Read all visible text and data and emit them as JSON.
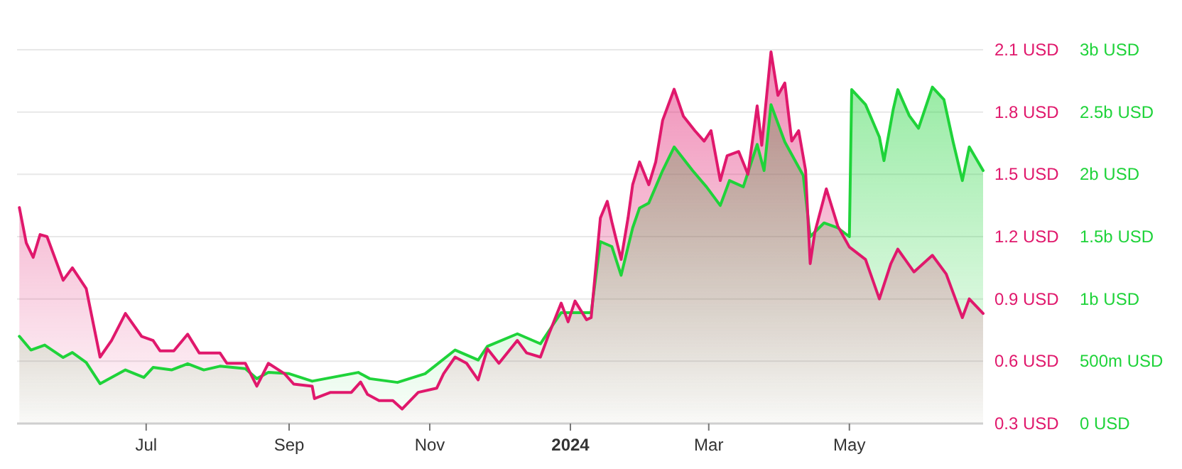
{
  "chart_data": {
    "type": "area",
    "grid": "y",
    "xlim": [
      "2023-05-06",
      "2024-06-28"
    ],
    "xticks": [
      {
        "value": "2023-07-01",
        "label": "Jul"
      },
      {
        "value": "2023-09-01",
        "label": "Sep"
      },
      {
        "value": "2023-11-01",
        "label": "Nov"
      },
      {
        "value": "2024-01-01",
        "label": "2024"
      },
      {
        "value": "2024-03-01",
        "label": "Mar"
      },
      {
        "value": "2024-05-01",
        "label": "May"
      }
    ],
    "ylim": [
      0.3,
      2.1
    ],
    "yticks": [
      {
        "value": 0.3,
        "label": "0.3 USD"
      },
      {
        "value": 0.6,
        "label": "0.6 USD"
      },
      {
        "value": 0.9,
        "label": "0.9 USD"
      },
      {
        "value": 1.2,
        "label": "1.2 USD"
      },
      {
        "value": 1.5,
        "label": "1.5 USD"
      },
      {
        "value": 1.8,
        "label": "1.8 USD"
      },
      {
        "value": 2.1,
        "label": "2.1 USD"
      }
    ],
    "y2lim": [
      0,
      3000000000
    ],
    "y2ticks": [
      {
        "value": 0,
        "label": "0 USD"
      },
      {
        "value": 500000000,
        "label": "500m USD"
      },
      {
        "value": 1000000000,
        "label": "1b USD"
      },
      {
        "value": 1500000000,
        "label": "1.5b USD"
      },
      {
        "value": 2000000000,
        "label": "2b USD"
      },
      {
        "value": 2500000000,
        "label": "2.5b USD"
      },
      {
        "value": 3000000000,
        "label": "3b USD"
      }
    ],
    "series": [
      {
        "color": "#1fd33a",
        "axis": "y2",
        "x": [
          "2023-05-07",
          "2023-05-12",
          "2023-05-18",
          "2023-05-26",
          "2023-05-30",
          "2023-06-05",
          "2023-06-11",
          "2023-06-22",
          "2023-06-30",
          "2023-07-04",
          "2023-07-12",
          "2023-07-19",
          "2023-07-26",
          "2023-08-02",
          "2023-08-13",
          "2023-08-18",
          "2023-08-23",
          "2023-09-01",
          "2023-09-11",
          "2023-10-01",
          "2023-10-06",
          "2023-10-18",
          "2023-10-30",
          "2023-11-12",
          "2023-11-22",
          "2023-11-26",
          "2023-12-09",
          "2023-12-19",
          "2023-12-24",
          "2023-12-28",
          "2024-01-10",
          "2024-01-14",
          "2024-01-19",
          "2024-01-23",
          "2024-01-28",
          "2024-01-31",
          "2024-02-04",
          "2024-02-10",
          "2024-02-15",
          "2024-02-23",
          "2024-02-29",
          "2024-03-06",
          "2024-03-10",
          "2024-03-16",
          "2024-03-22",
          "2024-03-25",
          "2024-03-28",
          "2024-04-03",
          "2024-04-11",
          "2024-04-14",
          "2024-04-20",
          "2024-04-26",
          "2024-05-01",
          "2024-05-02",
          "2024-05-08",
          "2024-05-14",
          "2024-05-16",
          "2024-05-20",
          "2024-05-22",
          "2024-05-27",
          "2024-05-31",
          "2024-06-06",
          "2024-06-11",
          "2024-06-15",
          "2024-06-19",
          "2024-06-22",
          "2024-06-28"
        ],
        "values": [
          700000000,
          590000000,
          630000000,
          530000000,
          570000000,
          490000000,
          320000000,
          430000000,
          370000000,
          450000000,
          430000000,
          480000000,
          430000000,
          460000000,
          440000000,
          360000000,
          410000000,
          400000000,
          340000000,
          410000000,
          360000000,
          330000000,
          400000000,
          590000000,
          510000000,
          620000000,
          720000000,
          640000000,
          780000000,
          890000000,
          890000000,
          1460000000,
          1420000000,
          1190000000,
          1570000000,
          1730000000,
          1770000000,
          2030000000,
          2220000000,
          2030000000,
          1900000000,
          1750000000,
          1950000000,
          1900000000,
          2240000000,
          2030000000,
          2560000000,
          2260000000,
          1990000000,
          1500000000,
          1610000000,
          1570000000,
          1500000000,
          2680000000,
          2560000000,
          2300000000,
          2110000000,
          2520000000,
          2680000000,
          2470000000,
          2370000000,
          2700000000,
          2600000000,
          2260000000,
          1950000000,
          2220000000,
          2030000000
        ]
      },
      {
        "color": "#e0186c",
        "axis": "y",
        "x": [
          "2023-05-07",
          "2023-05-10",
          "2023-05-13",
          "2023-05-16",
          "2023-05-19",
          "2023-05-26",
          "2023-05-30",
          "2023-06-05",
          "2023-06-11",
          "2023-06-16",
          "2023-06-22",
          "2023-06-29",
          "2023-07-04",
          "2023-07-07",
          "2023-07-13",
          "2023-07-19",
          "2023-07-24",
          "2023-08-02",
          "2023-08-05",
          "2023-08-13",
          "2023-08-18",
          "2023-08-23",
          "2023-08-30",
          "2023-09-03",
          "2023-09-11",
          "2023-09-12",
          "2023-09-19",
          "2023-09-28",
          "2023-10-02",
          "2023-10-05",
          "2023-10-10",
          "2023-10-16",
          "2023-10-20",
          "2023-10-27",
          "2023-11-04",
          "2023-11-07",
          "2023-11-12",
          "2023-11-17",
          "2023-11-22",
          "2023-11-26",
          "2023-12-01",
          "2023-12-09",
          "2023-12-13",
          "2023-12-19",
          "2023-12-23",
          "2023-12-28",
          "2023-12-31",
          "2024-01-03",
          "2024-01-08",
          "2024-01-10",
          "2024-01-14",
          "2024-01-17",
          "2024-01-19",
          "2024-01-23",
          "2024-01-26",
          "2024-01-28",
          "2024-01-31",
          "2024-02-04",
          "2024-02-07",
          "2024-02-10",
          "2024-02-15",
          "2024-02-19",
          "2024-02-24",
          "2024-02-28",
          "2024-03-02",
          "2024-03-06",
          "2024-03-09",
          "2024-03-14",
          "2024-03-18",
          "2024-03-22",
          "2024-03-24",
          "2024-03-28",
          "2024-03-31",
          "2024-04-03",
          "2024-04-06",
          "2024-04-09",
          "2024-04-12",
          "2024-04-14",
          "2024-04-16",
          "2024-04-21",
          "2024-04-26",
          "2024-05-01",
          "2024-05-08",
          "2024-05-14",
          "2024-05-19",
          "2024-05-22",
          "2024-05-29",
          "2024-06-06",
          "2024-06-12",
          "2024-06-19",
          "2024-06-22",
          "2024-06-28"
        ],
        "values": [
          1.34,
          1.17,
          1.1,
          1.21,
          1.2,
          0.99,
          1.05,
          0.95,
          0.62,
          0.7,
          0.83,
          0.72,
          0.7,
          0.65,
          0.65,
          0.73,
          0.64,
          0.64,
          0.59,
          0.59,
          0.48,
          0.59,
          0.54,
          0.49,
          0.48,
          0.42,
          0.45,
          0.45,
          0.5,
          0.44,
          0.41,
          0.41,
          0.37,
          0.45,
          0.47,
          0.54,
          0.62,
          0.59,
          0.51,
          0.66,
          0.59,
          0.7,
          0.64,
          0.62,
          0.74,
          0.88,
          0.79,
          0.89,
          0.8,
          0.81,
          1.29,
          1.37,
          1.27,
          1.09,
          1.29,
          1.45,
          1.56,
          1.45,
          1.56,
          1.76,
          1.91,
          1.78,
          1.71,
          1.66,
          1.71,
          1.47,
          1.59,
          1.61,
          1.5,
          1.83,
          1.64,
          2.09,
          1.88,
          1.94,
          1.66,
          1.71,
          1.52,
          1.07,
          1.22,
          1.43,
          1.25,
          1.15,
          1.09,
          0.9,
          1.07,
          1.14,
          1.03,
          1.11,
          1.02,
          0.81,
          0.9,
          0.83
        ]
      }
    ]
  }
}
